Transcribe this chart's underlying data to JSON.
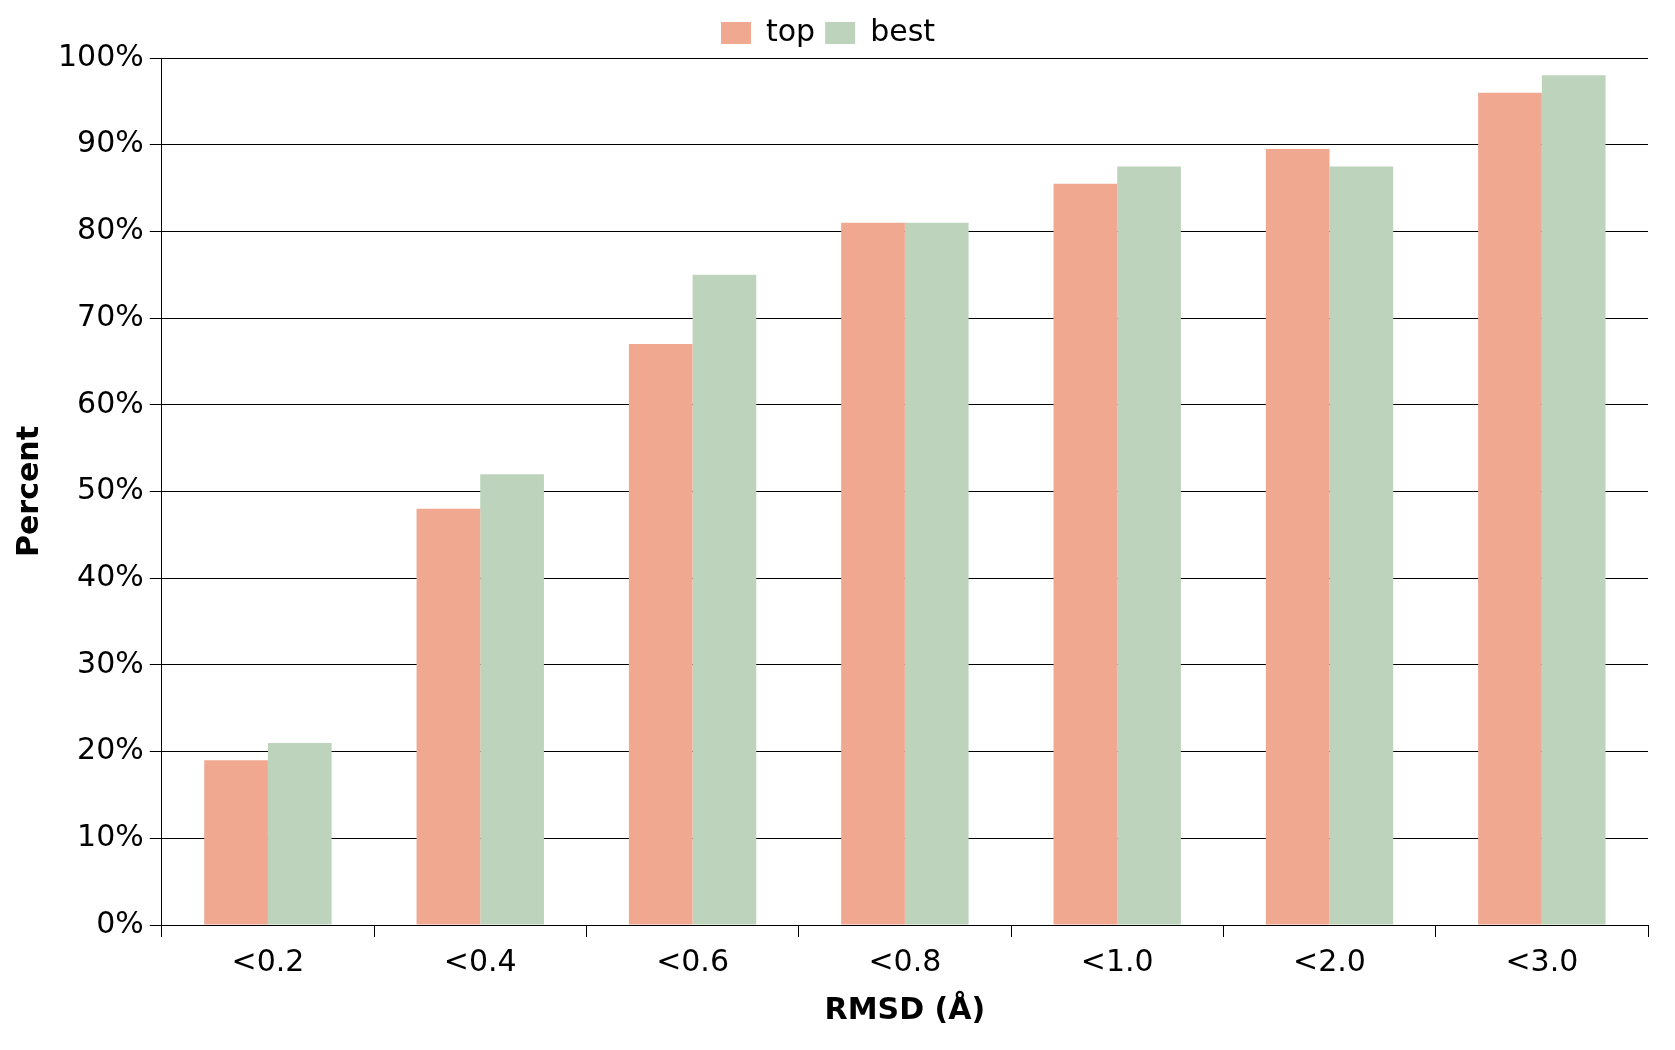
{
  "chart_data": {
    "type": "bar",
    "xlabel": "RMSD (Å)",
    "ylabel": "Percent",
    "categories": [
      "<0.2",
      "<0.4",
      "<0.6",
      "<0.8",
      "<1.0",
      "<2.0",
      "<3.0"
    ],
    "series": [
      {
        "name": "top",
        "color": "#f0a890",
        "values": [
          19,
          48,
          67,
          81,
          85.5,
          89.5,
          96
        ]
      },
      {
        "name": "best",
        "color": "#bdd3bb",
        "values": [
          21,
          52,
          75,
          81,
          87.5,
          87.5,
          98
        ]
      }
    ],
    "ylim": [
      0,
      100
    ],
    "yticks": [
      {
        "value": 0,
        "label": "0%"
      },
      {
        "value": 10,
        "label": "10%"
      },
      {
        "value": 20,
        "label": "20%"
      },
      {
        "value": 30,
        "label": "30%"
      },
      {
        "value": 40,
        "label": "40%"
      },
      {
        "value": 50,
        "label": "50%"
      },
      {
        "value": 60,
        "label": "60%"
      },
      {
        "value": 70,
        "label": "70%"
      },
      {
        "value": 80,
        "label": "80%"
      },
      {
        "value": 90,
        "label": "90%"
      },
      {
        "value": 100,
        "label": "100%"
      }
    ],
    "grid": "y",
    "legend": "top"
  }
}
